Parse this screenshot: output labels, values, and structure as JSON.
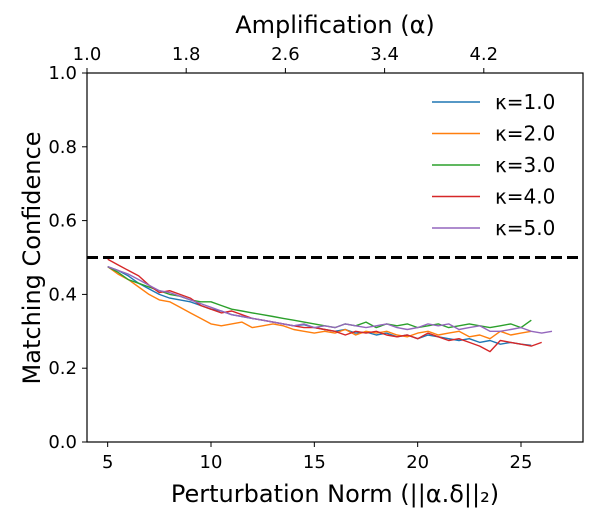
{
  "chart_data": {
    "type": "line",
    "xlabel": "Perturbation Norm (||α.δ||₂)",
    "ylabel": "Matching Confidence",
    "top_xlabel": "Amplification (α)",
    "xlim": [
      4,
      28
    ],
    "ylim": [
      0,
      1
    ],
    "x_ticks": [
      5,
      10,
      15,
      20,
      25
    ],
    "y_ticks": [
      0.0,
      0.2,
      0.4,
      0.6,
      0.8,
      1.0
    ],
    "y_tick_labels": [
      "0.0",
      "0.2",
      "0.4",
      "0.6",
      "0.8",
      "1.0"
    ],
    "top_ticks": [
      {
        "label": "1.0",
        "x": 4.0
      },
      {
        "label": "1.8",
        "x": 8.8
      },
      {
        "label": "2.6",
        "x": 13.6
      },
      {
        "label": "3.4",
        "x": 18.4
      },
      {
        "label": "4.2",
        "x": 23.2
      }
    ],
    "threshold": 0.5,
    "legend_position": "top-right",
    "series": [
      {
        "name": "κ=1.0",
        "color": "#1f77b4",
        "x": [
          5.0,
          5.5,
          6.0,
          6.5,
          7.0,
          7.5,
          8.0,
          8.5,
          9.0,
          9.5,
          10.0,
          10.5,
          11.0,
          11.5,
          12.0,
          12.5,
          13.0,
          13.5,
          14.0,
          14.5,
          15.0,
          15.5,
          16.0,
          16.5,
          17.0,
          17.5,
          18.0,
          18.5,
          19.0,
          19.5,
          20.0,
          20.5,
          21.0,
          21.5,
          22.0,
          22.5,
          23.0,
          23.5,
          24.0,
          24.5,
          25.0,
          25.5
        ],
        "y": [
          0.475,
          0.465,
          0.45,
          0.43,
          0.415,
          0.4,
          0.39,
          0.385,
          0.38,
          0.37,
          0.36,
          0.355,
          0.345,
          0.34,
          0.335,
          0.33,
          0.325,
          0.32,
          0.315,
          0.318,
          0.31,
          0.305,
          0.3,
          0.305,
          0.295,
          0.298,
          0.29,
          0.295,
          0.285,
          0.29,
          0.28,
          0.29,
          0.285,
          0.28,
          0.275,
          0.28,
          0.27,
          0.275,
          0.265,
          0.27,
          0.265,
          0.262
        ]
      },
      {
        "name": "κ=2.0",
        "color": "#ff7f0e",
        "x": [
          5.0,
          5.5,
          6.0,
          6.5,
          7.0,
          7.5,
          8.0,
          8.5,
          9.0,
          9.5,
          10.0,
          10.5,
          11.0,
          11.5,
          12.0,
          12.5,
          13.0,
          13.5,
          14.0,
          14.5,
          15.0,
          15.5,
          16.0,
          16.5,
          17.0,
          17.5,
          18.0,
          18.5,
          19.0,
          19.5,
          20.0,
          20.5,
          21.0,
          21.5,
          22.0,
          22.5,
          23.0,
          23.5,
          24.0,
          24.5,
          25.0,
          25.5
        ],
        "y": [
          0.475,
          0.455,
          0.44,
          0.42,
          0.4,
          0.385,
          0.38,
          0.365,
          0.35,
          0.335,
          0.32,
          0.315,
          0.32,
          0.325,
          0.31,
          0.315,
          0.32,
          0.315,
          0.305,
          0.3,
          0.295,
          0.3,
          0.295,
          0.305,
          0.29,
          0.3,
          0.295,
          0.3,
          0.29,
          0.285,
          0.295,
          0.3,
          0.29,
          0.295,
          0.3,
          0.285,
          0.29,
          0.28,
          0.3,
          0.29,
          0.295,
          0.3
        ]
      },
      {
        "name": "κ=3.0",
        "color": "#2ca02c",
        "x": [
          5.0,
          5.5,
          6.0,
          6.5,
          7.0,
          7.5,
          8.0,
          8.5,
          9.0,
          9.5,
          10.0,
          10.5,
          11.0,
          11.5,
          12.0,
          12.5,
          13.0,
          13.5,
          14.0,
          14.5,
          15.0,
          15.5,
          16.0,
          16.5,
          17.0,
          17.5,
          18.0,
          18.5,
          19.0,
          19.5,
          20.0,
          20.5,
          21.0,
          21.5,
          22.0,
          22.5,
          23.0,
          23.5,
          24.0,
          24.5,
          25.0,
          25.5
        ],
        "y": [
          0.475,
          0.46,
          0.44,
          0.43,
          0.42,
          0.41,
          0.4,
          0.395,
          0.385,
          0.38,
          0.38,
          0.37,
          0.36,
          0.355,
          0.35,
          0.345,
          0.34,
          0.335,
          0.33,
          0.325,
          0.32,
          0.315,
          0.31,
          0.32,
          0.315,
          0.325,
          0.31,
          0.32,
          0.315,
          0.32,
          0.31,
          0.315,
          0.32,
          0.31,
          0.315,
          0.32,
          0.315,
          0.31,
          0.315,
          0.32,
          0.31,
          0.33
        ]
      },
      {
        "name": "κ=4.0",
        "color": "#d62728",
        "x": [
          5.0,
          5.5,
          6.0,
          6.5,
          7.0,
          7.5,
          8.0,
          8.5,
          9.0,
          9.5,
          10.0,
          10.5,
          11.0,
          11.5,
          12.0,
          12.5,
          13.0,
          13.5,
          14.0,
          14.5,
          15.0,
          15.5,
          16.0,
          16.5,
          17.0,
          17.5,
          18.0,
          18.5,
          19.0,
          19.5,
          20.0,
          20.5,
          21.0,
          21.5,
          22.0,
          22.5,
          23.0,
          23.5,
          24.0,
          24.5,
          25.0,
          25.5,
          26.0
        ],
        "y": [
          0.495,
          0.48,
          0.465,
          0.45,
          0.425,
          0.405,
          0.41,
          0.4,
          0.39,
          0.37,
          0.36,
          0.35,
          0.355,
          0.345,
          0.335,
          0.33,
          0.325,
          0.32,
          0.315,
          0.31,
          0.31,
          0.305,
          0.3,
          0.29,
          0.3,
          0.295,
          0.3,
          0.29,
          0.285,
          0.29,
          0.28,
          0.295,
          0.285,
          0.275,
          0.28,
          0.27,
          0.26,
          0.245,
          0.275,
          0.27,
          0.265,
          0.26,
          0.27
        ]
      },
      {
        "name": "κ=5.0",
        "color": "#9467bd",
        "x": [
          5.0,
          5.5,
          6.0,
          6.5,
          7.0,
          7.5,
          8.0,
          8.5,
          9.0,
          9.5,
          10.0,
          10.5,
          11.0,
          11.5,
          12.0,
          12.5,
          13.0,
          13.5,
          14.0,
          14.5,
          15.0,
          15.5,
          16.0,
          16.5,
          17.0,
          17.5,
          18.0,
          18.5,
          19.0,
          19.5,
          20.0,
          20.5,
          21.0,
          21.5,
          22.0,
          22.5,
          23.0,
          23.5,
          24.0,
          24.5,
          25.0,
          25.5,
          26.0,
          26.5
        ],
        "y": [
          0.475,
          0.465,
          0.455,
          0.44,
          0.425,
          0.41,
          0.405,
          0.395,
          0.385,
          0.375,
          0.365,
          0.355,
          0.345,
          0.34,
          0.335,
          0.33,
          0.325,
          0.32,
          0.315,
          0.32,
          0.31,
          0.315,
          0.31,
          0.32,
          0.315,
          0.31,
          0.315,
          0.32,
          0.31,
          0.305,
          0.31,
          0.32,
          0.315,
          0.32,
          0.305,
          0.31,
          0.315,
          0.3,
          0.3,
          0.305,
          0.31,
          0.3,
          0.295,
          0.3
        ]
      }
    ]
  }
}
